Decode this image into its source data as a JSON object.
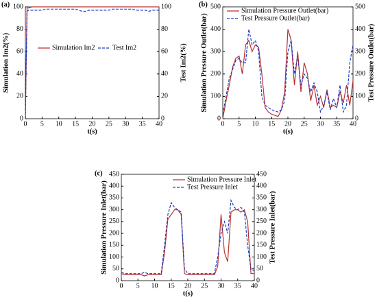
{
  "chart_data": [
    {
      "type": "line",
      "panel_label": "(a)",
      "xlabel": "t(s)",
      "ylabel": "Simulation Im2(%)",
      "y2label": "Test Im2(%)",
      "x": [
        0,
        0.5,
        1,
        2,
        3,
        4,
        5,
        6,
        7,
        8,
        9,
        10,
        11,
        12,
        13,
        14,
        15,
        16,
        17,
        18,
        19,
        20,
        21,
        22,
        23,
        24,
        25,
        26,
        27,
        28,
        29,
        30,
        31,
        32,
        33,
        34,
        35,
        36,
        37,
        38,
        39,
        40
      ],
      "series": [
        {
          "name": "Simulation Im2",
          "color": "#b8312f",
          "dash": false,
          "axis": "y",
          "values": [
            0,
            99,
            99,
            100,
            100,
            100,
            100,
            100,
            100,
            100,
            100,
            100,
            100,
            100,
            100,
            100,
            100,
            100,
            100,
            100,
            100,
            100,
            100,
            100,
            100,
            100,
            100,
            100,
            100,
            100,
            100,
            100,
            100,
            100,
            100,
            100,
            100,
            100,
            100,
            100,
            100,
            100
          ]
        },
        {
          "name": "Test Im2",
          "color": "#1f3fbf",
          "dash": true,
          "axis": "y2",
          "values": [
            0,
            96,
            97,
            97,
            97,
            97,
            97,
            98,
            98,
            98,
            98,
            98,
            98,
            98,
            98,
            98,
            98,
            97,
            96,
            96,
            97,
            97,
            97,
            97,
            97,
            97,
            97,
            98,
            98,
            98,
            98,
            98,
            98,
            98,
            97,
            97,
            97,
            97,
            96,
            97,
            97,
            97
          ]
        }
      ],
      "xlim": [
        0,
        40
      ],
      "xticks": [
        0,
        5,
        10,
        15,
        20,
        25,
        30,
        35,
        40
      ],
      "ylim": [
        0,
        100
      ],
      "yticks": [
        0,
        20,
        40,
        60,
        80,
        100
      ],
      "y2lim": [
        0,
        100
      ],
      "y2ticks": [
        0,
        20,
        40,
        60,
        80,
        100
      ],
      "legend": "center"
    },
    {
      "type": "line",
      "panel_label": "(b)",
      "xlabel": "t(s)",
      "ylabel": "Simulation Pressure Outlet(bar)",
      "y2label": "Test Pressure Outlet(bar)",
      "x": [
        0,
        1,
        2,
        3,
        4,
        5,
        6,
        7,
        8,
        9,
        10,
        11,
        12,
        13,
        14,
        15,
        16,
        17,
        18,
        19,
        20,
        21,
        22,
        23,
        24,
        25,
        26,
        27,
        28,
        29,
        30,
        31,
        32,
        33,
        34,
        35,
        36,
        37,
        38,
        39,
        40
      ],
      "series": [
        {
          "name": "Simulation Pressure Outlet(bar)",
          "color": "#b8312f",
          "dash": false,
          "axis": "y",
          "values": [
            0,
            80,
            150,
            230,
            270,
            280,
            200,
            330,
            350,
            300,
            330,
            320,
            200,
            50,
            30,
            20,
            15,
            10,
            40,
            120,
            400,
            350,
            150,
            300,
            120,
            250,
            200,
            80,
            150,
            60,
            100,
            50,
            130,
            50,
            60,
            50,
            120,
            70,
            150,
            60,
            170
          ]
        },
        {
          "name": "Test Pressure Outlet(bar)",
          "color": "#1f3fbf",
          "dash": true,
          "axis": "y2",
          "values": [
            20,
            100,
            180,
            220,
            260,
            270,
            250,
            250,
            400,
            330,
            350,
            300,
            100,
            60,
            50,
            40,
            35,
            30,
            40,
            80,
            300,
            350,
            200,
            280,
            150,
            200,
            180,
            120,
            160,
            120,
            30,
            60,
            120,
            40,
            90,
            50,
            150,
            30,
            60,
            250,
            330
          ]
        }
      ],
      "xlim": [
        0,
        40
      ],
      "xticks": [
        0,
        5,
        10,
        15,
        20,
        25,
        30,
        35,
        40
      ],
      "ylim": [
        0,
        500
      ],
      "yticks": [
        0,
        100,
        200,
        300,
        400,
        500
      ],
      "y2lim": [
        0,
        500
      ],
      "y2ticks": [
        0,
        100,
        200,
        300,
        400,
        500
      ],
      "legend": "top"
    },
    {
      "type": "line",
      "panel_label": "(c)",
      "xlabel": "t(s)",
      "ylabel": "Simulation Pressure Inlet(bar)",
      "y2label": "Test Pressure Inlet(bar)",
      "x": [
        0,
        1,
        2,
        3,
        4,
        5,
        6,
        7,
        8,
        9,
        10,
        11,
        12,
        13,
        14,
        15,
        16,
        17,
        18,
        19,
        20,
        21,
        22,
        23,
        24,
        25,
        26,
        27,
        28,
        29,
        30,
        31,
        32,
        33,
        34,
        35,
        36,
        37,
        38,
        39,
        40
      ],
      "series": [
        {
          "name": "Simulation Pressure Inlet",
          "color": "#b8312f",
          "dash": false,
          "axis": "y",
          "values": [
            30,
            25,
            25,
            25,
            25,
            25,
            25,
            20,
            25,
            25,
            25,
            25,
            25,
            120,
            260,
            280,
            300,
            300,
            280,
            30,
            25,
            25,
            25,
            25,
            25,
            25,
            25,
            25,
            25,
            60,
            280,
            120,
            80,
            290,
            300,
            300,
            290,
            300,
            250,
            30,
            30
          ]
        },
        {
          "name": "Test Pressure Inlet",
          "color": "#1f3fbf",
          "dash": true,
          "axis": "y2",
          "values": [
            35,
            30,
            30,
            30,
            30,
            30,
            30,
            35,
            30,
            30,
            30,
            30,
            30,
            150,
            280,
            330,
            310,
            300,
            290,
            50,
            30,
            30,
            30,
            30,
            30,
            30,
            30,
            30,
            30,
            100,
            200,
            250,
            200,
            340,
            310,
            300,
            310,
            290,
            150,
            50,
            40
          ]
        }
      ],
      "xlim": [
        0,
        40
      ],
      "xticks": [
        0,
        5,
        10,
        15,
        20,
        25,
        30,
        35,
        40
      ],
      "ylim": [
        0,
        450
      ],
      "yticks": [
        0,
        50,
        100,
        150,
        200,
        250,
        300,
        350,
        400,
        450
      ],
      "y2lim": [
        0,
        450
      ],
      "y2ticks": [
        0,
        50,
        100,
        150,
        200,
        250,
        300,
        350,
        400,
        450
      ],
      "legend": "top-right"
    }
  ]
}
